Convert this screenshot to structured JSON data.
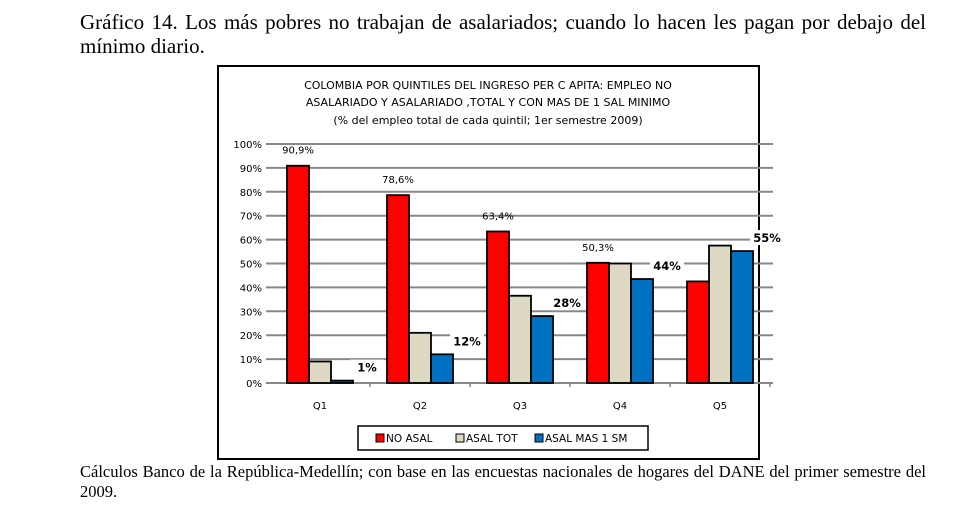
{
  "heading": "Gráfico 14.  Los más pobres no trabajan de asalariados; cuando lo hacen les pagan por debajo del mínimo diario.",
  "source": "Cálculos Banco de la República-Medellín;  con base en las encuestas nacionales de hogares del DANE del primer semestre del 2009.",
  "chart_data": {
    "type": "bar",
    "title": "COLOMBIA POR QUINTILES DEL INGRESO PER C APITA: EMPLEO NO ASALARIADO Y ASALARIADO ,TOTAL Y CON MAS DE 1 SAL MINIMO",
    "title_lines": [
      "COLOMBIA POR QUINTILES DEL INGRESO PER C APITA: EMPLEO NO",
      "ASALARIADO Y ASALARIADO ,TOTAL Y CON MAS DE 1 SAL MINIMO"
    ],
    "subtitle": "(% del empleo total de cada quintil; 1er semestre 2009)",
    "categories": [
      "Q1",
      "Q2",
      "Q3",
      "Q4",
      "Q5"
    ],
    "ylim": [
      0,
      100
    ],
    "yticks": [
      "0%",
      "10%",
      "20%",
      "30%",
      "40%",
      "50%",
      "60%",
      "70%",
      "80%",
      "90%",
      "100%"
    ],
    "grid": true,
    "legend": "bottom",
    "series": [
      {
        "name": "NO ASAL",
        "color": "#ff0000",
        "values": [
          90.9,
          78.6,
          63.4,
          50.3,
          42.5
        ],
        "labels": [
          "90,9%",
          "78,6%",
          "63,4%",
          "50,3%",
          ""
        ]
      },
      {
        "name": "ASAL TOT",
        "color": "#ddd9c3",
        "values": [
          9,
          21,
          36.5,
          50,
          57.5
        ],
        "labels": [
          "",
          "",
          "",
          "",
          ""
        ]
      },
      {
        "name": "ASAL MAS 1 SM",
        "color": "#0070c0",
        "values": [
          1,
          12,
          28,
          43.5,
          55.2
        ],
        "labels": [
          "1%",
          "12%",
          "28%",
          "44%",
          "55%"
        ]
      }
    ]
  }
}
